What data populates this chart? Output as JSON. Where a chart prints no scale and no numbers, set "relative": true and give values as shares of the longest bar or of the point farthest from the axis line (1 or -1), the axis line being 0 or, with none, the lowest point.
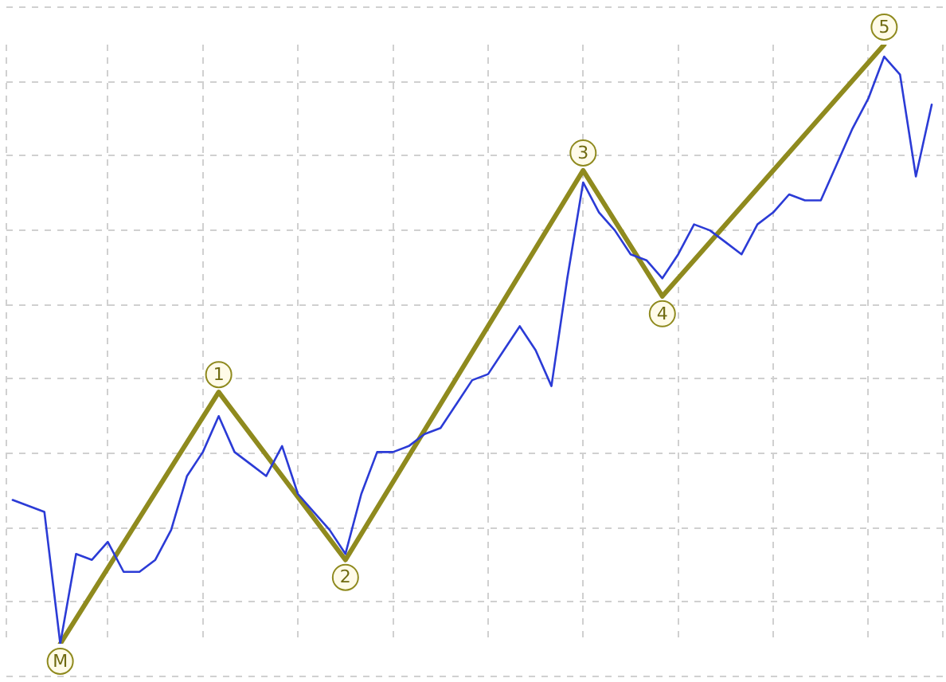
{
  "chart_data": {
    "type": "line",
    "relative": true,
    "categories": [
      null,
      null,
      null,
      null,
      null,
      null,
      null,
      null,
      null,
      null,
      null,
      null,
      null,
      null,
      null,
      null,
      null,
      null,
      null,
      null,
      null,
      null,
      null,
      null,
      null,
      null,
      null,
      null,
      null,
      null,
      null,
      null,
      null,
      null,
      null,
      null,
      null,
      null,
      null,
      null,
      null,
      null,
      null,
      null,
      null,
      null,
      null,
      null,
      null,
      null,
      null,
      null,
      null,
      null,
      null,
      null,
      null,
      null,
      null
    ],
    "series": [
      {
        "color": "#2b3bd6",
        "values": [
          0.24,
          0.23,
          0.22,
          0.0,
          0.15,
          0.14,
          0.17,
          0.12,
          0.12,
          0.14,
          0.19,
          0.28,
          0.32,
          0.38,
          0.32,
          0.3,
          0.28,
          0.33,
          0.25,
          0.22,
          0.19,
          0.15,
          0.25,
          0.32,
          0.32,
          0.33,
          0.35,
          0.36,
          0.4,
          0.44,
          0.45,
          0.49,
          0.53,
          0.49,
          0.43,
          0.61,
          0.77,
          0.72,
          0.69,
          0.65,
          0.64,
          0.61,
          0.65,
          0.7,
          0.69,
          0.67,
          0.65,
          0.7,
          0.72,
          0.75,
          0.74,
          0.74,
          0.8,
          0.86,
          0.91,
          0.98,
          0.95,
          0.78,
          0.9
        ]
      },
      {
        "color": "#8f8a1e",
        "values": [
          null,
          null,
          null,
          0.0,
          null,
          null,
          null,
          null,
          null,
          null,
          null,
          null,
          null,
          0.42,
          null,
          null,
          null,
          null,
          null,
          null,
          null,
          0.14,
          null,
          null,
          null,
          null,
          null,
          null,
          null,
          null,
          null,
          null,
          null,
          null,
          null,
          null,
          0.79,
          null,
          null,
          null,
          null,
          0.58,
          null,
          null,
          null,
          null,
          null,
          null,
          null,
          null,
          null,
          null,
          null,
          null,
          null,
          1.0,
          null,
          null,
          null
        ]
      }
    ],
    "annotations": [
      {
        "text": "M",
        "y": 0.0
      },
      {
        "text": "1",
        "y": 0.42
      },
      {
        "text": "2",
        "y": 0.14
      },
      {
        "text": "3",
        "y": 0.79
      },
      {
        "text": "4",
        "y": 0.58
      },
      {
        "text": "5",
        "y": 1.0
      }
    ],
    "grid": true,
    "legend": false,
    "marker": "none",
    "line_style": "solid"
  }
}
